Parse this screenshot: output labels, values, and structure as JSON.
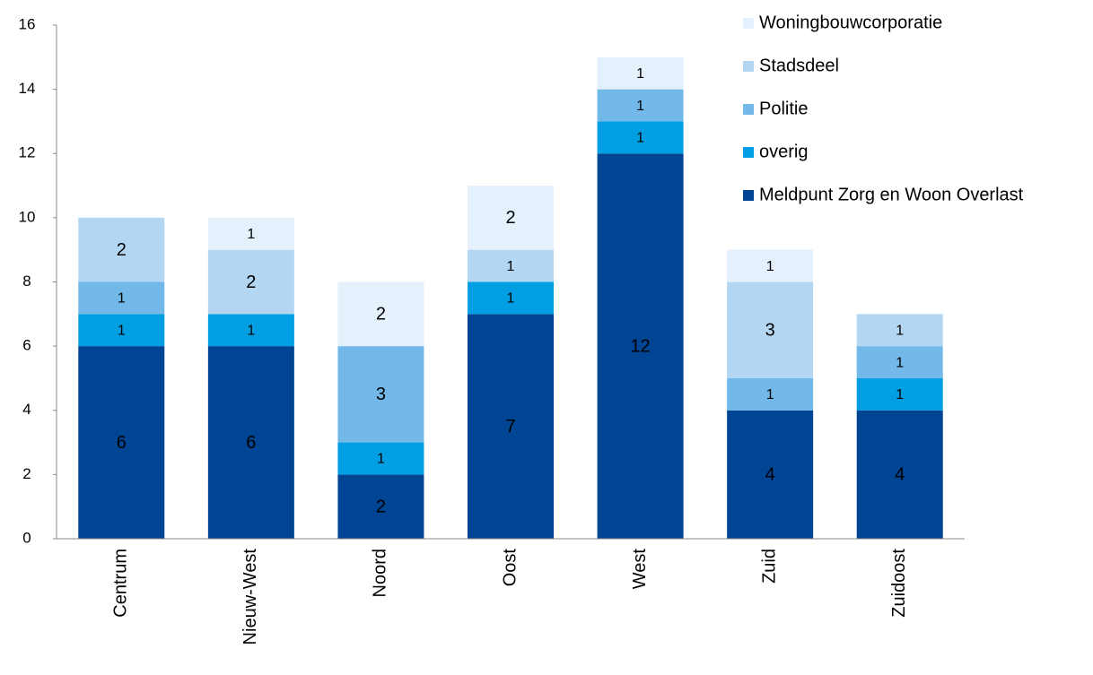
{
  "chart_data": {
    "type": "stacked_bar",
    "categories": [
      "Centrum",
      "Nieuw-West",
      "Noord",
      "Oost",
      "West",
      "Zuid",
      "Zuidoost"
    ],
    "series": [
      {
        "name": "Meldpunt Zorg en Woon Overlast",
        "color": "#004494",
        "values": [
          6,
          6,
          2,
          7,
          12,
          4,
          4
        ]
      },
      {
        "name": "overig",
        "color": "#009fe3",
        "values": [
          1,
          1,
          1,
          1,
          1,
          0,
          1
        ]
      },
      {
        "name": "Politie",
        "color": "#72b9ea",
        "values": [
          1,
          0,
          3,
          0,
          1,
          1,
          1
        ]
      },
      {
        "name": "Stadsdeel",
        "color": "#b3d6f3",
        "values": [
          2,
          2,
          0,
          1,
          0,
          3,
          1
        ]
      },
      {
        "name": "Woningbouwcorporatie",
        "color": "#e4f0fb",
        "values": [
          0,
          1,
          2,
          2,
          1,
          1,
          0
        ]
      }
    ],
    "ylim": [
      0,
      16
    ],
    "yticks": [
      0,
      2,
      4,
      6,
      8,
      10,
      12,
      14,
      16
    ],
    "legend": "top-right"
  }
}
